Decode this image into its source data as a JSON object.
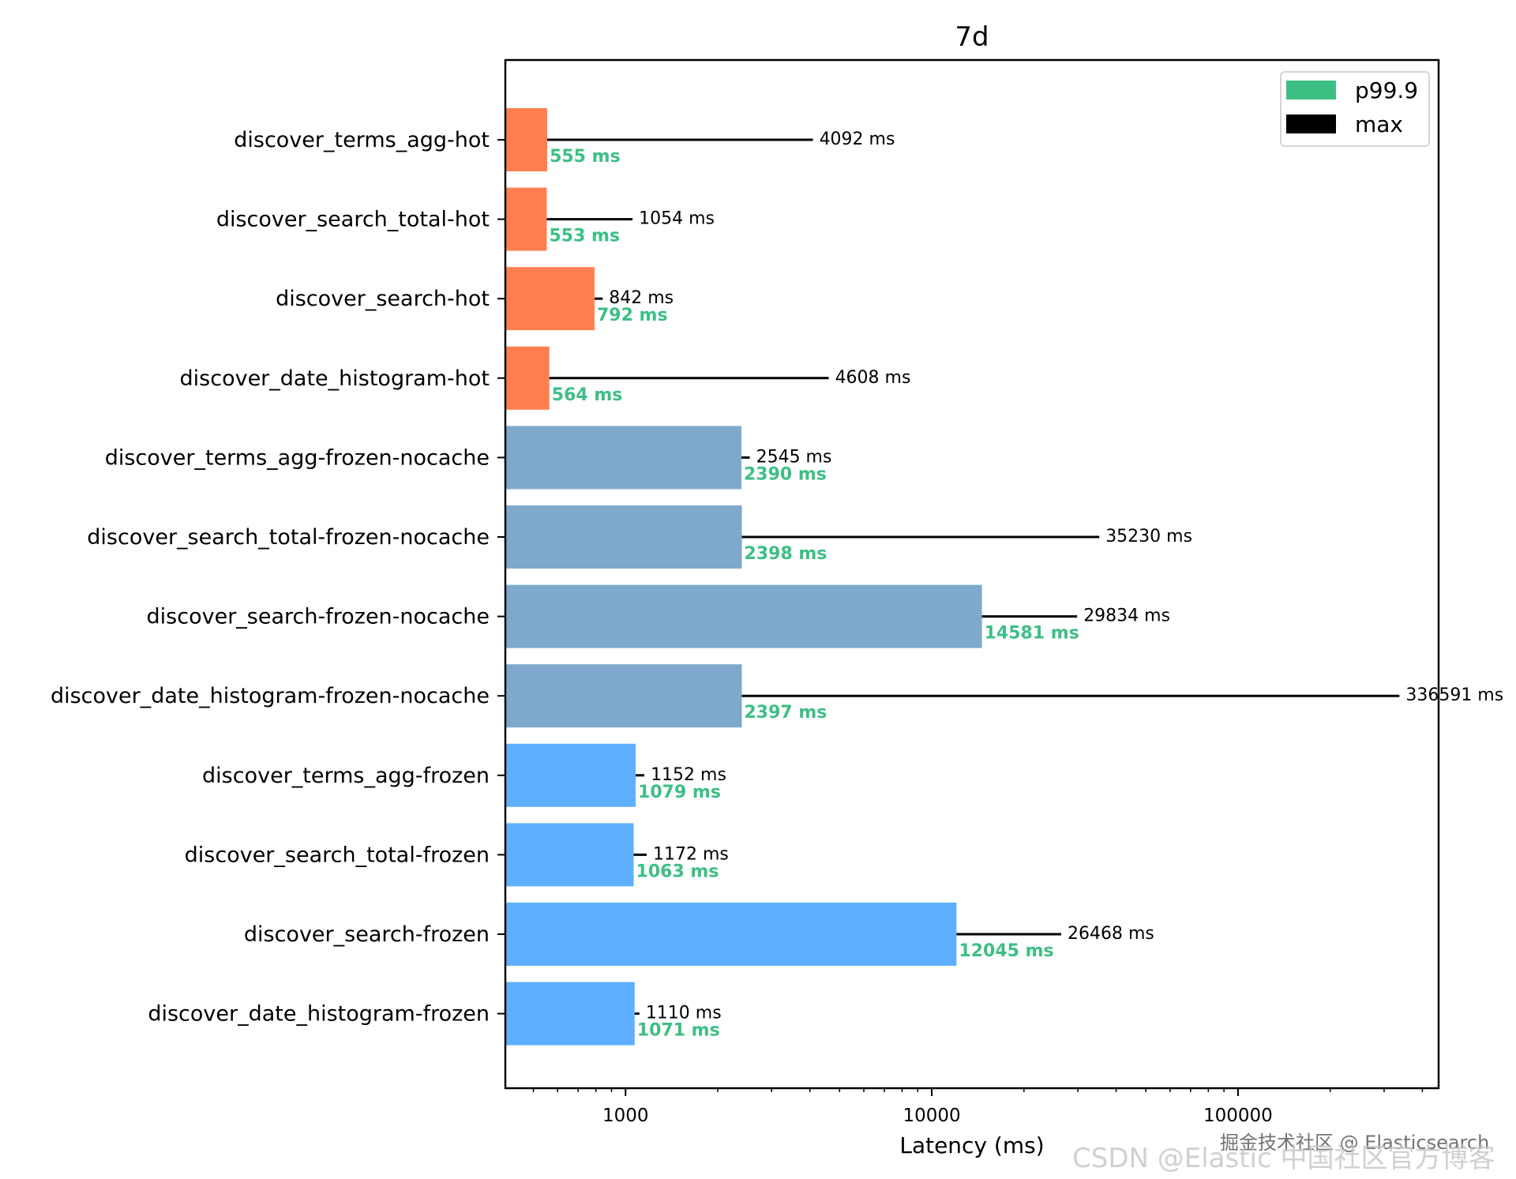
{
  "chart_data": {
    "type": "bar",
    "orientation": "horizontal",
    "title": "7d",
    "xlabel": "Latency (ms)",
    "ylabel": "",
    "xscale": "log",
    "xlim": [
      405,
      452000
    ],
    "xticks": [
      {
        "value": 1000,
        "label": "1000"
      },
      {
        "value": 10000,
        "label": "10000"
      },
      {
        "value": 100000,
        "label": "100000"
      }
    ],
    "grid": false,
    "legend": {
      "placement": "top-right",
      "entries": [
        {
          "label": "p99.9",
          "color": "#3dbf84"
        },
        {
          "label": "max",
          "color": "#000000"
        }
      ]
    },
    "value_unit": "ms",
    "groups": [
      {
        "name": "hot",
        "color": "#ff7f50"
      },
      {
        "name": "frozen-nocache",
        "color": "#7ea9cc"
      },
      {
        "name": "frozen",
        "color": "#5eb0ff"
      }
    ],
    "categories": [
      "discover_terms_agg-hot",
      "discover_search_total-hot",
      "discover_search-hot",
      "discover_date_histogram-hot",
      "discover_terms_agg-frozen-nocache",
      "discover_search_total-frozen-nocache",
      "discover_search-frozen-nocache",
      "discover_date_histogram-frozen-nocache",
      "discover_terms_agg-frozen",
      "discover_search_total-frozen",
      "discover_search-frozen",
      "discover_date_histogram-frozen"
    ],
    "category_groups": [
      "hot",
      "hot",
      "hot",
      "hot",
      "frozen-nocache",
      "frozen-nocache",
      "frozen-nocache",
      "frozen-nocache",
      "frozen",
      "frozen",
      "frozen",
      "frozen"
    ],
    "series": [
      {
        "name": "p99.9",
        "values": [
          555,
          553,
          792,
          564,
          2390,
          2398,
          14581,
          2397,
          1079,
          1063,
          12045,
          1071
        ]
      },
      {
        "name": "max",
        "values": [
          4092,
          1054,
          842,
          4608,
          2545,
          35230,
          29834,
          336591,
          1152,
          1172,
          26468,
          1110
        ]
      }
    ]
  },
  "watermarks": {
    "line1": "掘金技术社区 @ Elasticsearch",
    "line2": "CSDN @Elastic 中国社区官方博客"
  }
}
